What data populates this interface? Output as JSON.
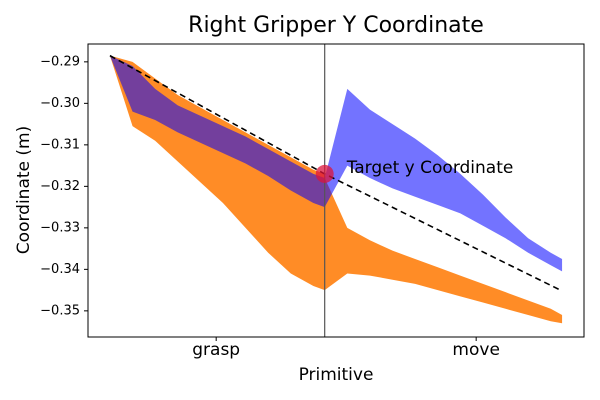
{
  "chart_data": {
    "type": "band",
    "title": "Right Gripper Y Coordinate",
    "xlabel": "Primitive",
    "ylabel": "Coordinate (m)",
    "x": [
      0,
      1,
      2,
      3,
      4,
      5,
      6,
      7,
      8,
      9,
      9.5,
      9.5,
      10.5,
      11.5,
      12.5,
      13.5,
      14.5,
      15.5,
      16.5,
      17.5,
      18.5,
      19.5,
      20
    ],
    "series": [
      {
        "color": "#ff7f0e",
        "alpha": 0.9,
        "upper": [
          -0.2885,
          -0.29,
          -0.294,
          -0.298,
          -0.301,
          -0.304,
          -0.307,
          -0.31,
          -0.313,
          -0.316,
          -0.317,
          -0.318,
          -0.33,
          -0.333,
          -0.3355,
          -0.3375,
          -0.3395,
          -0.3415,
          -0.3435,
          -0.3455,
          -0.3475,
          -0.3495,
          -0.351
        ],
        "lower": [
          -0.2885,
          -0.3055,
          -0.309,
          -0.314,
          -0.319,
          -0.324,
          -0.33,
          -0.336,
          -0.341,
          -0.344,
          -0.345,
          -0.345,
          -0.341,
          -0.3415,
          -0.3425,
          -0.3435,
          -0.345,
          -0.3465,
          -0.348,
          -0.3495,
          -0.351,
          -0.3525,
          -0.353
        ]
      },
      {
        "color": "#0000ff",
        "alpha": 0.55,
        "upper": [
          -0.2885,
          -0.291,
          -0.2965,
          -0.3005,
          -0.303,
          -0.3055,
          -0.308,
          -0.311,
          -0.314,
          -0.317,
          -0.318,
          -0.318,
          -0.2965,
          -0.3015,
          -0.305,
          -0.3085,
          -0.3125,
          -0.317,
          -0.322,
          -0.3275,
          -0.3325,
          -0.336,
          -0.3375
        ],
        "lower": [
          -0.2885,
          -0.302,
          -0.304,
          -0.307,
          -0.3095,
          -0.312,
          -0.3145,
          -0.3175,
          -0.321,
          -0.324,
          -0.325,
          -0.325,
          -0.315,
          -0.318,
          -0.3205,
          -0.3225,
          -0.3245,
          -0.3265,
          -0.3295,
          -0.3325,
          -0.336,
          -0.339,
          -0.3405
        ]
      }
    ],
    "target_line": {
      "x": [
        0,
        9.5,
        20
      ],
      "values": [
        -0.2885,
        -0.317,
        -0.3452
      ],
      "color": "#000000",
      "dashed": true
    },
    "divider_x": 9.5,
    "target_point": {
      "x": 9.5,
      "y": -0.317,
      "color": "#dc143c",
      "label": "Target y Coordinate"
    },
    "xlim": [
      -0.97,
      20.97
    ],
    "ylim": [
      -0.3563,
      -0.2857
    ],
    "xticks": [
      {
        "value": 4.7,
        "label": "grasp"
      },
      {
        "value": 16.2,
        "label": "move"
      }
    ],
    "yticks": [
      {
        "value": -0.29,
        "label": "−0.29"
      },
      {
        "value": -0.3,
        "label": "−0.30"
      },
      {
        "value": -0.31,
        "label": "−0.31"
      },
      {
        "value": -0.32,
        "label": "−0.32"
      },
      {
        "value": -0.33,
        "label": "−0.33"
      },
      {
        "value": -0.34,
        "label": "−0.34"
      },
      {
        "value": -0.35,
        "label": "−0.35"
      }
    ]
  }
}
